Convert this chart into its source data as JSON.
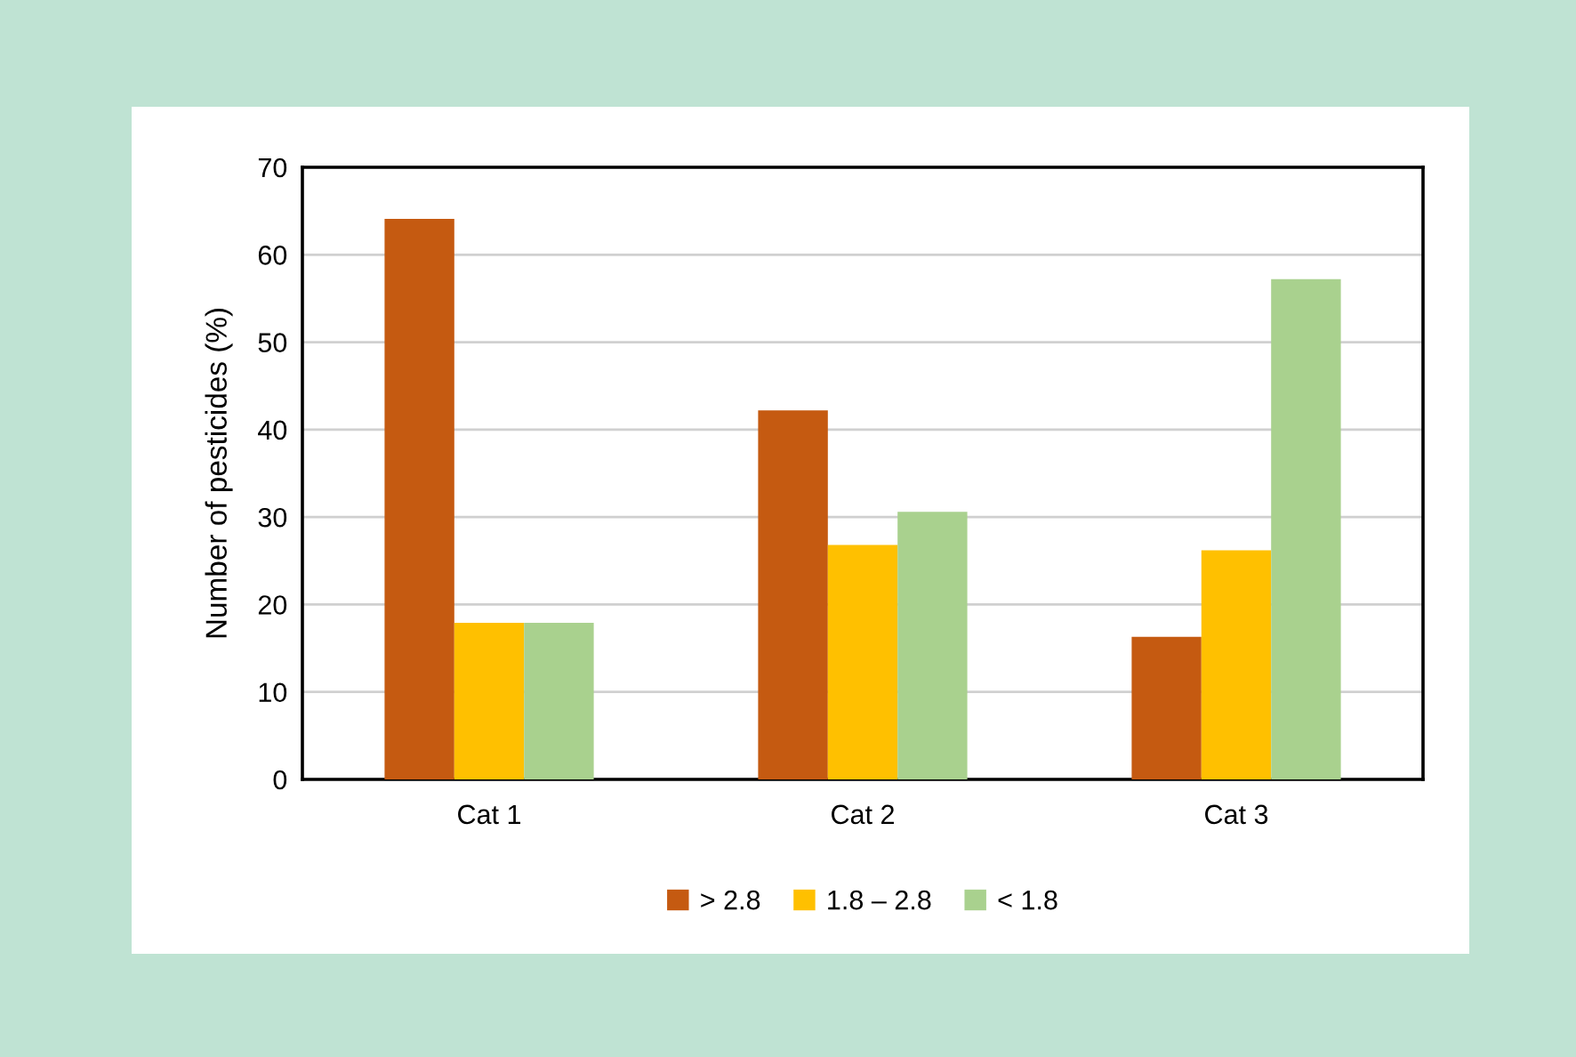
{
  "chart_data": {
    "type": "bar",
    "ylabel": "Number of pesticides (%)",
    "categories": [
      "Cat 1",
      "Cat 2",
      "Cat 3"
    ],
    "series": [
      {
        "name": "> 2.8",
        "color": "#c55a11",
        "values": [
          64.1,
          42.2,
          16.3
        ]
      },
      {
        "name": "1.8 – 2.8",
        "color": "#ffc000",
        "values": [
          17.9,
          26.8,
          26.2
        ]
      },
      {
        "name": "< 1.8",
        "color": "#a9d18e",
        "values": [
          17.9,
          30.6,
          57.2
        ]
      }
    ],
    "ylim": [
      0,
      70
    ],
    "yticks": [
      0,
      10,
      20,
      30,
      40,
      50,
      60,
      70
    ],
    "grid": "y",
    "legend": "bottom"
  }
}
